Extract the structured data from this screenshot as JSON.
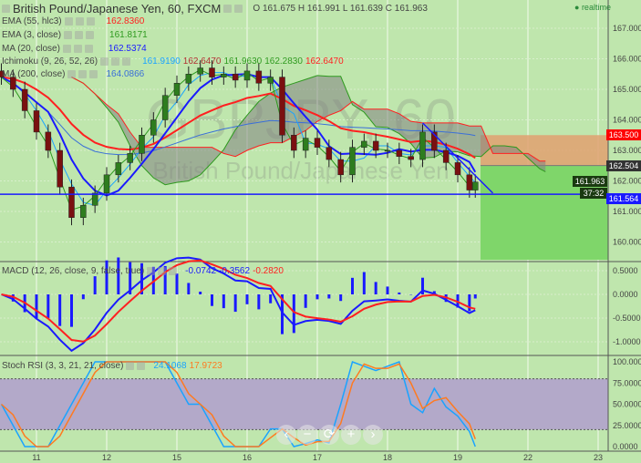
{
  "header": {
    "symbol": "British Pound/Japanese Yen, 60, FXCM",
    "ohlc": {
      "o_label": "O",
      "o": "161.675",
      "h_label": "H",
      "h": "161.991",
      "l_label": "L",
      "l": "161.639",
      "c_label": "C",
      "c": "161.963"
    },
    "status": "realtime",
    "watermark": "GBPJPY, 60",
    "watermark_sub": "British Pound/Japanese Yen"
  },
  "legend": [
    {
      "label": "EMA (55, hlc3)",
      "value": "162.8360",
      "color": "#ff2020"
    },
    {
      "label": "EMA (3, close)",
      "value": "161.8171",
      "color": "#2e9a1e"
    },
    {
      "label": "MA (20, close)",
      "value": "162.5374",
      "color": "#1a1aff"
    },
    {
      "label": "Ichimoku (9, 26, 52, 26)",
      "values": [
        "161.9190",
        "162.6470",
        "161.9630",
        "162.2830",
        "162.6470"
      ],
      "colors": [
        "#1aa3ff",
        "#b03030",
        "#2e9a1e",
        "#2e9a1e",
        "#ff2020"
      ]
    },
    {
      "label": "MA (200, close)",
      "value": "164.0866",
      "color": "#3a6fd8"
    }
  ],
  "macd": {
    "label": "MACD (12, 26, close, 9, false, true)",
    "values": [
      "-0.0742",
      "-0.3562",
      "-0.2820"
    ],
    "colors": [
      "#1a1aff",
      "#1a1aff",
      "#ff2020"
    ]
  },
  "stoch": {
    "label": "Stoch RSI (3, 3, 21, 21, close)",
    "values": [
      "24.1068",
      "17.9723"
    ],
    "colors": [
      "#1aa3ff",
      "#ff7a20"
    ]
  },
  "price_labels": {
    "stop": "163.500",
    "entry": "162.504",
    "last": "161.963",
    "countdown": "37:32",
    "hline": "161.564"
  },
  "zoom_buttons": [
    "‹",
    "−",
    "⟳",
    "+",
    "›"
  ],
  "colors": {
    "background": "#bfe6ad",
    "up": "#2e7d1e",
    "down": "#7a1010",
    "stop_zone": "#e0a070",
    "target_zone": "#7fd66a",
    "stoch_band": "#b3a9c9"
  },
  "chart_data": {
    "type": "candlestick",
    "price_axis": {
      "ticks": [
        "167.000",
        "166.000",
        "165.000",
        "164.000",
        "163.000",
        "162.000",
        "161.000",
        "160.000"
      ],
      "range": [
        159.4,
        167.9
      ]
    },
    "macd_axis": {
      "ticks": [
        "0.5000",
        "0.0000",
        "-0.5000",
        "-1.0000"
      ]
    },
    "stoch_axis": {
      "ticks": [
        "100.0000",
        "75.0000",
        "50.0000",
        "25.0000",
        "0.0000"
      ],
      "band": [
        20,
        80
      ]
    },
    "date_ticks": [
      "11",
      "12",
      "15",
      "16",
      "17",
      "18",
      "19",
      "22",
      "23"
    ],
    "closes": [
      [
        "10 12:00",
        165.4
      ],
      [
        "10 16:00",
        165.0
      ],
      [
        "10 20:00",
        164.3
      ],
      [
        "11 00:00",
        163.6
      ],
      [
        "11 04:00",
        163.0
      ],
      [
        "11 08:00",
        161.8
      ],
      [
        "11 12:00",
        160.8
      ],
      [
        "11 16:00",
        161.2
      ],
      [
        "11 20:00",
        161.6
      ],
      [
        "12 00:00",
        162.2
      ],
      [
        "12 04:00",
        162.6
      ],
      [
        "12 08:00",
        162.9
      ],
      [
        "12 12:00",
        163.5
      ],
      [
        "12 16:00",
        164.0
      ],
      [
        "12 20:00",
        164.8
      ],
      [
        "15 00:00",
        165.2
      ],
      [
        "15 04:00",
        165.5
      ],
      [
        "15 08:00",
        165.7
      ],
      [
        "15 12:00",
        165.4
      ],
      [
        "15 16:00",
        165.5
      ],
      [
        "15 20:00",
        165.3
      ],
      [
        "16 00:00",
        165.6
      ],
      [
        "16 04:00",
        165.2
      ],
      [
        "16 08:00",
        165.4
      ],
      [
        "16 12:00",
        163.5
      ],
      [
        "16 16:00",
        163.0
      ],
      [
        "16 20:00",
        163.4
      ],
      [
        "17 00:00",
        163.1
      ],
      [
        "17 04:00",
        162.7
      ],
      [
        "17 08:00",
        162.2
      ],
      [
        "17 12:00",
        163.1
      ],
      [
        "17 16:00",
        163.3
      ],
      [
        "17 20:00",
        163.0
      ],
      [
        "18 00:00",
        163.0
      ],
      [
        "18 04:00",
        162.8
      ],
      [
        "18 08:00",
        162.7
      ],
      [
        "18 12:00",
        163.6
      ],
      [
        "18 16:00",
        163.0
      ],
      [
        "18 20:00",
        162.6
      ],
      [
        "19 00:00",
        162.2
      ],
      [
        "19 04:00",
        161.7
      ],
      [
        "19 06:00",
        161.963
      ]
    ],
    "horizontal_line": 161.564,
    "position": {
      "stop": 163.5,
      "entry": 162.504,
      "target": 159.4
    },
    "trend_line": [
      [
        "18 12:00",
        163.9
      ],
      [
        "19 12:00",
        161.6
      ]
    ]
  }
}
